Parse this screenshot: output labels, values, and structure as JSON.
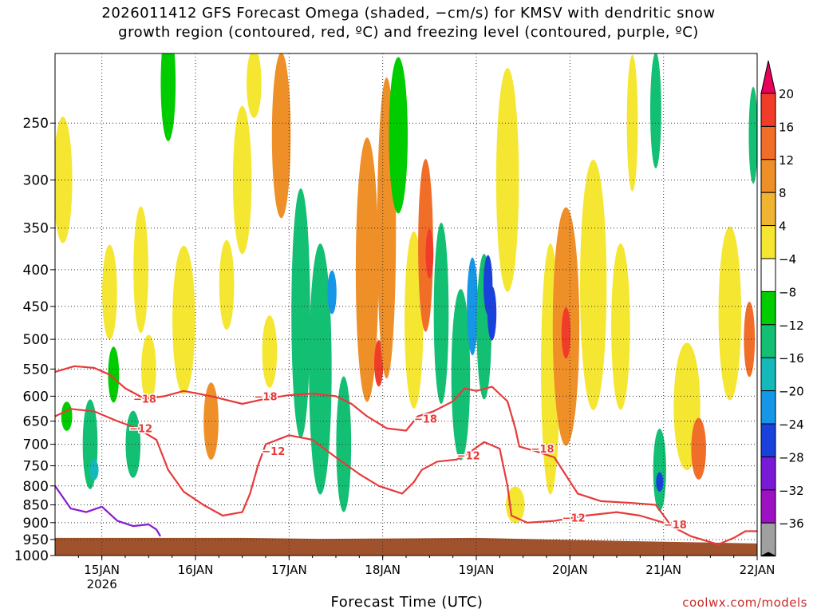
{
  "title": {
    "line1": "2026011412 GFS Forecast Omega (shaded, −cm/s) for KMSV with dendritic snow",
    "line2": "growth region (contoured, red, ºC) and freezing level (contoured, purple, ºC)"
  },
  "credit": "coolwx.com/models",
  "chart_data": {
    "type": "heatmap",
    "title": "2026011412 GFS Forecast Omega (shaded, −cm/s) for KMSV with dendritic snow growth region (contoured, red, ºC) and freezing level (contoured, purple, ºC)",
    "xlabel": "Forecast Time (UTC)",
    "ylabel": "",
    "x_ticks": [
      {
        "label": "15JAN",
        "sub": "2026",
        "t": 24
      },
      {
        "label": "16JAN",
        "sub": "",
        "t": 48
      },
      {
        "label": "17JAN",
        "sub": "",
        "t": 72
      },
      {
        "label": "18JAN",
        "sub": "",
        "t": 96
      },
      {
        "label": "19JAN",
        "sub": "",
        "t": 120
      },
      {
        "label": "20JAN",
        "sub": "",
        "t": 144
      },
      {
        "label": "21JAN",
        "sub": "",
        "t": 168
      },
      {
        "label": "22JAN",
        "sub": "",
        "t": 192
      }
    ],
    "xlim": [
      12,
      192
    ],
    "y_ticks": [
      250,
      300,
      350,
      400,
      450,
      500,
      550,
      600,
      650,
      700,
      750,
      800,
      850,
      900,
      950,
      1000
    ],
    "ylim": [
      1000,
      200
    ],
    "y_scale": "log-pressure",
    "grid": true,
    "colorbar": {
      "labels": [
        "20",
        "16",
        "12",
        "8",
        "4",
        "−4",
        "−8",
        "−12",
        "−16",
        "−20",
        "−24",
        "−28",
        "−32",
        "−36"
      ],
      "colors": [
        "#e8005a",
        "#f03c28",
        "#f06e28",
        "#ef8f28",
        "#f0b432",
        "#f5e632",
        "#ffffff",
        "#00cc00",
        "#13bf73",
        "#16b9b9",
        "#1696e6",
        "#1b41dc",
        "#7a1ad6",
        "#9e11c2",
        "#a0a0a0",
        "#000000"
      ]
    },
    "omega_shading": {
      "units": "-cm/s",
      "cells": [
        {
          "t": 14,
          "p": 300,
          "w": 4,
          "h": 120,
          "v": 6
        },
        {
          "t": 15,
          "p": 640,
          "w": 2,
          "h": 60,
          "v": -6
        },
        {
          "t": 21,
          "p": 700,
          "w": 3,
          "h": 200,
          "v": -8
        },
        {
          "t": 22,
          "p": 760,
          "w": 1.5,
          "h": 50,
          "v": -14
        },
        {
          "t": 26,
          "p": 430,
          "w": 3,
          "h": 130,
          "v": 6
        },
        {
          "t": 27,
          "p": 560,
          "w": 2,
          "h": 100,
          "v": -6
        },
        {
          "t": 32,
          "p": 700,
          "w": 3,
          "h": 150,
          "v": -8
        },
        {
          "t": 34,
          "p": 400,
          "w": 3,
          "h": 160,
          "v": 6
        },
        {
          "t": 36,
          "p": 550,
          "w": 3,
          "h": 120,
          "v": 5
        },
        {
          "t": 41,
          "p": 220,
          "w": 3,
          "h": 140,
          "v": -6
        },
        {
          "t": 45,
          "p": 470,
          "w": 5,
          "h": 220,
          "v": 6
        },
        {
          "t": 52,
          "p": 650,
          "w": 3,
          "h": 160,
          "v": 8
        },
        {
          "t": 56,
          "p": 420,
          "w": 3,
          "h": 120,
          "v": 6
        },
        {
          "t": 60,
          "p": 300,
          "w": 4,
          "h": 140,
          "v": 5
        },
        {
          "t": 63,
          "p": 220,
          "w": 3,
          "h": 60,
          "v": 6
        },
        {
          "t": 67,
          "p": 520,
          "w": 3,
          "h": 120,
          "v": 5
        },
        {
          "t": 70,
          "p": 260,
          "w": 4,
          "h": 160,
          "v": 8
        },
        {
          "t": 75,
          "p": 460,
          "w": 4,
          "h": 350,
          "v": -8
        },
        {
          "t": 80,
          "p": 550,
          "w": 5,
          "h": 420,
          "v": -10
        },
        {
          "t": 83,
          "p": 430,
          "w": 1.5,
          "h": 60,
          "v": -18
        },
        {
          "t": 86,
          "p": 700,
          "w": 3,
          "h": 300,
          "v": -8
        },
        {
          "t": 92,
          "p": 400,
          "w": 5,
          "h": 320,
          "v": 8
        },
        {
          "t": 95,
          "p": 540,
          "w": 1.5,
          "h": 80,
          "v": 16
        },
        {
          "t": 97,
          "p": 350,
          "w": 4,
          "h": 350,
          "v": 10
        },
        {
          "t": 100,
          "p": 260,
          "w": 4,
          "h": 140,
          "v": -6
        },
        {
          "t": 104,
          "p": 470,
          "w": 4,
          "h": 260,
          "v": 6
        },
        {
          "t": 107,
          "p": 370,
          "w": 3,
          "h": 200,
          "v": 12
        },
        {
          "t": 108,
          "p": 380,
          "w": 1.2,
          "h": 60,
          "v": 17
        },
        {
          "t": 111,
          "p": 460,
          "w": 3,
          "h": 260,
          "v": -8
        },
        {
          "t": 116,
          "p": 560,
          "w": 4,
          "h": 300,
          "v": -10
        },
        {
          "t": 119,
          "p": 450,
          "w": 2,
          "h": 140,
          "v": -16
        },
        {
          "t": 122,
          "p": 480,
          "w": 3,
          "h": 220,
          "v": -8
        },
        {
          "t": 123,
          "p": 420,
          "w": 1.5,
          "h": 80,
          "v": -20
        },
        {
          "t": 124,
          "p": 460,
          "w": 1.5,
          "h": 80,
          "v": -22
        },
        {
          "t": 128,
          "p": 300,
          "w": 5,
          "h": 220,
          "v": 5
        },
        {
          "t": 130,
          "p": 850,
          "w": 4,
          "h": 100,
          "v": 4
        },
        {
          "t": 139,
          "p": 550,
          "w": 4,
          "h": 420,
          "v": 6
        },
        {
          "t": 143,
          "p": 480,
          "w": 6,
          "h": 350,
          "v": 10
        },
        {
          "t": 143,
          "p": 490,
          "w": 1.5,
          "h": 80,
          "v": 16
        },
        {
          "t": 150,
          "p": 420,
          "w": 6,
          "h": 320,
          "v": 6
        },
        {
          "t": 157,
          "p": 480,
          "w": 4,
          "h": 250,
          "v": 5
        },
        {
          "t": 160,
          "p": 250,
          "w": 2,
          "h": 120,
          "v": 6
        },
        {
          "t": 167,
          "p": 760,
          "w": 2.5,
          "h": 200,
          "v": -8
        },
        {
          "t": 167,
          "p": 790,
          "w": 1,
          "h": 50,
          "v": -20
        },
        {
          "t": 166,
          "p": 240,
          "w": 2,
          "h": 100,
          "v": -8
        },
        {
          "t": 174,
          "p": 620,
          "w": 6,
          "h": 250,
          "v": 6
        },
        {
          "t": 177,
          "p": 710,
          "w": 3,
          "h": 140,
          "v": 12
        },
        {
          "t": 185,
          "p": 460,
          "w": 5,
          "h": 250,
          "v": 5
        },
        {
          "t": 190,
          "p": 500,
          "w": 2,
          "h": 120,
          "v": 12
        },
        {
          "t": 191,
          "p": 260,
          "w": 1.5,
          "h": 80,
          "v": -8
        }
      ]
    },
    "contours": [
      {
        "name": "−18",
        "color": "#e83a3a",
        "points": [
          [
            12,
            555
          ],
          [
            17,
            545
          ],
          [
            22,
            548
          ],
          [
            26,
            560
          ],
          [
            30,
            585
          ],
          [
            35,
            605
          ],
          [
            40,
            600
          ],
          [
            45,
            590
          ],
          [
            52,
            600
          ],
          [
            60,
            615
          ],
          [
            66,
            605
          ],
          [
            72,
            598
          ],
          [
            78,
            595
          ],
          [
            84,
            600
          ],
          [
            88,
            615
          ],
          [
            92,
            640
          ],
          [
            97,
            665
          ],
          [
            102,
            670
          ],
          [
            105,
            640
          ],
          [
            109,
            630
          ],
          [
            114,
            610
          ],
          [
            117,
            585
          ],
          [
            120,
            590
          ],
          [
            124,
            582
          ],
          [
            128,
            610
          ],
          [
            130,
            665
          ],
          [
            131,
            705
          ],
          [
            135,
            715
          ],
          [
            140,
            730
          ],
          [
            146,
            820
          ],
          [
            152,
            840
          ],
          [
            160,
            845
          ],
          [
            166,
            850
          ],
          [
            170,
            910
          ],
          [
            175,
            940
          ],
          [
            182,
            965
          ],
          [
            186,
            945
          ],
          [
            189,
            925
          ],
          [
            192,
            925
          ]
        ],
        "labels": [
          {
            "t": 35,
            "p": 605,
            "text": "−18"
          },
          {
            "t": 66,
            "p": 600,
            "text": "−18"
          },
          {
            "t": 107,
            "p": 645,
            "text": "−18"
          },
          {
            "t": 137,
            "p": 710,
            "text": "−18"
          },
          {
            "t": 171,
            "p": 905,
            "text": "−18"
          }
        ]
      },
      {
        "name": "−12",
        "color": "#e83a3a",
        "points": [
          [
            12,
            640
          ],
          [
            16,
            625
          ],
          [
            22,
            630
          ],
          [
            28,
            650
          ],
          [
            33,
            665
          ],
          [
            38,
            690
          ],
          [
            41,
            760
          ],
          [
            45,
            815
          ],
          [
            50,
            850
          ],
          [
            55,
            880
          ],
          [
            60,
            870
          ],
          [
            62,
            820
          ],
          [
            64,
            750
          ],
          [
            66,
            700
          ],
          [
            72,
            680
          ],
          [
            78,
            690
          ],
          [
            84,
            730
          ],
          [
            90,
            770
          ],
          [
            95,
            800
          ],
          [
            101,
            820
          ],
          [
            104,
            790
          ],
          [
            106,
            760
          ],
          [
            110,
            740
          ],
          [
            115,
            735
          ],
          [
            118,
            720
          ],
          [
            122,
            695
          ],
          [
            126,
            710
          ],
          [
            128,
            800
          ],
          [
            129,
            880
          ],
          [
            133,
            900
          ],
          [
            140,
            895
          ],
          [
            148,
            880
          ],
          [
            156,
            870
          ],
          [
            162,
            880
          ],
          [
            168,
            900
          ]
        ],
        "labels": [
          {
            "t": 34,
            "p": 665,
            "text": "−12"
          },
          {
            "t": 68,
            "p": 715,
            "text": "−12"
          },
          {
            "t": 118,
            "p": 725,
            "text": "−12"
          },
          {
            "t": 145,
            "p": 885,
            "text": "−12"
          }
        ]
      },
      {
        "name": "freezing level",
        "color": "#8a1ac8",
        "points": [
          [
            12,
            800
          ],
          [
            16,
            860
          ],
          [
            20,
            870
          ],
          [
            24,
            855
          ],
          [
            28,
            895
          ],
          [
            32,
            910
          ],
          [
            36,
            905
          ],
          [
            38,
            920
          ],
          [
            39,
            940
          ]
        ],
        "labels": []
      }
    ],
    "ground": {
      "color": "#a0522d",
      "top_hpa": [
        [
          12,
          945
        ],
        [
          60,
          945
        ],
        [
          80,
          948
        ],
        [
          120,
          945
        ],
        [
          160,
          955
        ],
        [
          192,
          962
        ]
      ]
    }
  }
}
